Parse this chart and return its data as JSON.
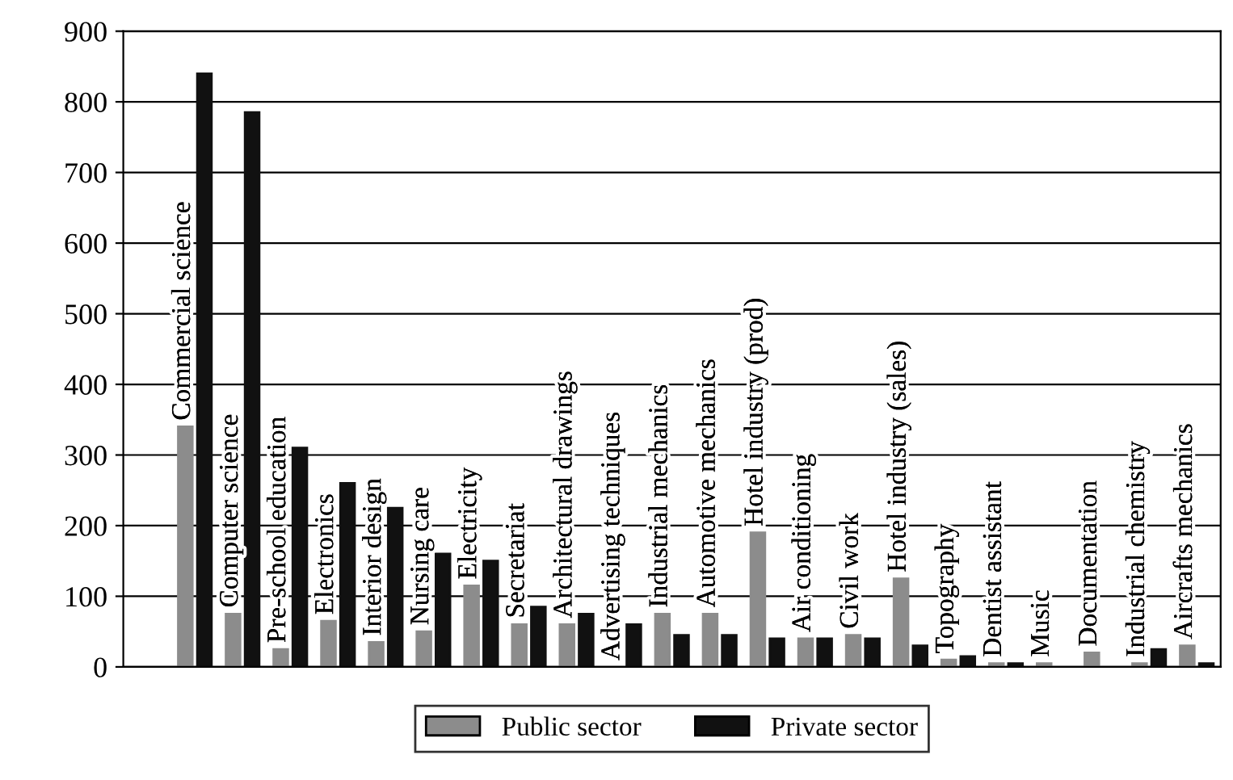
{
  "chart_data": {
    "type": "bar",
    "categories": [
      null,
      "Commercial science",
      "Computer science",
      "Pre-school education",
      "Electronics",
      "Interior design",
      "Nursing care",
      "Electricity",
      "Secretariat",
      "Architectural drawings",
      "Advertising techniques",
      "Industrial mechanics",
      "Automotive mechanics",
      "Hotel industry (prod)",
      "Air conditioning",
      "Civil work",
      "Hotel industry (sales)",
      "Topography",
      "Dentist assistant",
      "Music",
      "Documentation",
      "Industrial chemistry",
      "Aircrafts mechanics"
    ],
    "series": [
      {
        "name": "Public sector",
        "color": "#8c8c8c",
        "values": [
          null,
          340,
          75,
          25,
          65,
          35,
          50,
          115,
          60,
          60,
          null,
          75,
          75,
          190,
          40,
          45,
          125,
          10,
          5,
          5,
          20,
          5,
          30
        ]
      },
      {
        "name": "Private sector",
        "color": "#111111",
        "values": [
          null,
          840,
          785,
          310,
          260,
          225,
          160,
          150,
          85,
          75,
          60,
          45,
          45,
          40,
          40,
          40,
          30,
          15,
          5,
          null,
          null,
          25,
          5
        ]
      }
    ],
    "ylim": [
      0,
      900
    ],
    "yticks": [
      0,
      100,
      200,
      300,
      400,
      500,
      600,
      700,
      800,
      900
    ],
    "grid": "y",
    "legend": "bottom"
  }
}
